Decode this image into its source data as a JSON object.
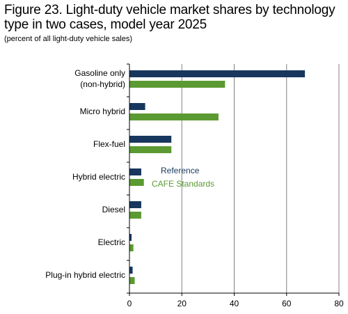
{
  "title": "Figure 23. Light-duty vehicle market shares by technology type in two cases, model year 2025",
  "subtitle": "(percent of all light-duty vehicle sales)",
  "colors": {
    "reference": "#17375e",
    "cafe": "#5b9a32",
    "grid": "#808080"
  },
  "chart_data": {
    "type": "bar",
    "orientation": "horizontal",
    "categories": [
      [
        "Gasoline only",
        "(non-hybrid)"
      ],
      [
        "Micro hybrid"
      ],
      [
        "Flex-fuel"
      ],
      [
        "Hybrid electric"
      ],
      [
        "Diesel"
      ],
      [
        "Electric"
      ],
      [
        "Plug-in hybrid electric"
      ]
    ],
    "series": [
      {
        "name": "Reference",
        "color": "#17375e",
        "values": [
          67,
          6,
          16,
          4.5,
          4.5,
          0.8,
          1.2
        ]
      },
      {
        "name": "CAFE Standards",
        "color": "#5b9a32",
        "values": [
          36.5,
          34,
          16,
          5.5,
          4.5,
          1.5,
          2
        ]
      }
    ],
    "xlim": [
      0,
      80
    ],
    "xticks": [
      0,
      20,
      40,
      60,
      80
    ],
    "grid": true,
    "legend": "inside, centre"
  }
}
